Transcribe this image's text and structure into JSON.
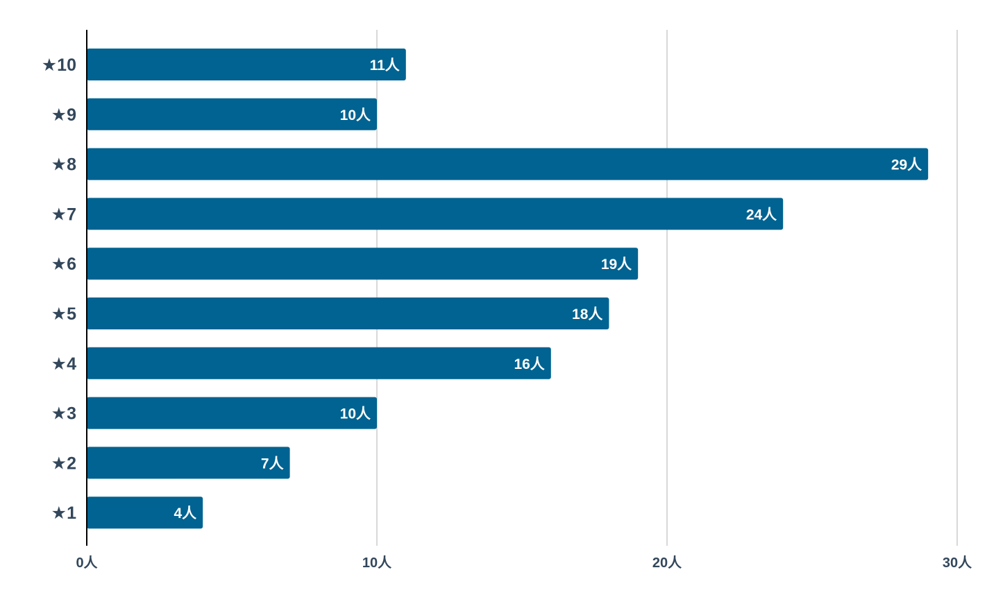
{
  "chart_data": {
    "type": "bar",
    "orientation": "horizontal",
    "categories": [
      "★10",
      "★9",
      "★8",
      "★7",
      "★6",
      "★5",
      "★4",
      "★3",
      "★2",
      "★1"
    ],
    "values": [
      11,
      10,
      29,
      24,
      19,
      18,
      16,
      10,
      7,
      4
    ],
    "value_labels": [
      "11人",
      "10人",
      "29人",
      "24人",
      "19人",
      "18人",
      "16人",
      "10人",
      "7人",
      "4人"
    ],
    "xlim": [
      0,
      30
    ],
    "x_ticks": [
      0,
      10,
      20,
      30
    ],
    "x_tick_labels": [
      "0人",
      "10人",
      "20人",
      "30人"
    ],
    "title": "",
    "xlabel": "",
    "ylabel": "",
    "grid": "vertical",
    "legend": "none",
    "bar_color": "#006391",
    "label_color": "#33475b",
    "value_label_color": "#ffffff",
    "grid_color": "#cccccc",
    "axis_color": "#000000"
  }
}
